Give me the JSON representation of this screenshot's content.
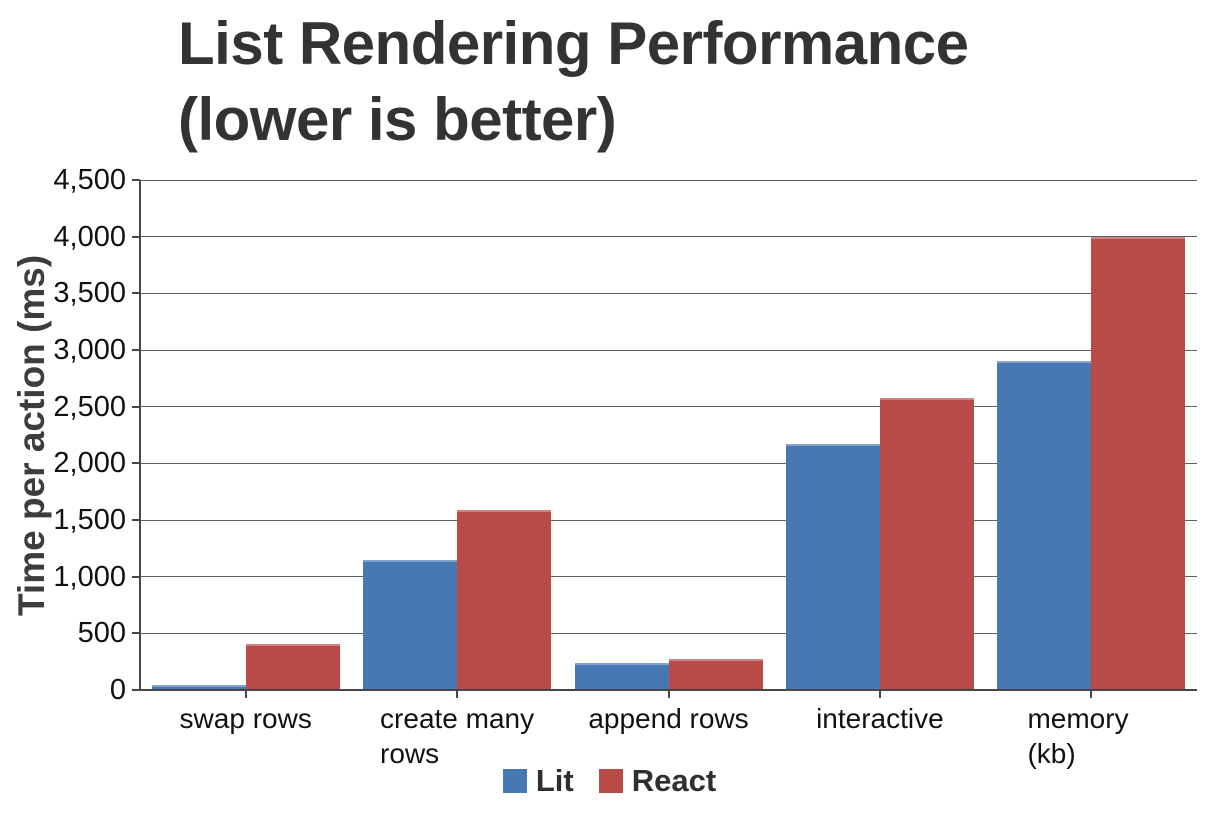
{
  "title": {
    "line1": "List Rendering Performance",
    "line2": "(lower is better)"
  },
  "chart_data": {
    "type": "bar",
    "title": "List Rendering Performance (lower is better)",
    "ylabel": "Time per action (ms)",
    "xlabel": "",
    "categories": [
      "swap rows",
      "create many rows",
      "append rows",
      "interactive",
      "memory (kb)"
    ],
    "series": [
      {
        "name": "Lit",
        "color": "#4878b4",
        "values": [
          45,
          1150,
          240,
          2170,
          2900
        ]
      },
      {
        "name": "React",
        "color": "#b84a48",
        "values": [
          410,
          1590,
          275,
          2580,
          4000
        ]
      }
    ],
    "ylim": [
      0,
      4500
    ],
    "ytick_step": 500,
    "ytick_labels": [
      "0",
      "500",
      "1,000",
      "1,500",
      "2,000",
      "2,500",
      "3,000",
      "3,500",
      "4,000",
      "4,500"
    ],
    "grid": true,
    "legend_position": "bottom"
  },
  "colors": {
    "grid": "#5f5f5f",
    "axis": "#474747",
    "tick_text": "#111111",
    "title_text": "#333333",
    "axis_title_text": "#3d3d3d",
    "legend_text": "#2f2f2f",
    "background": "#ffffff"
  }
}
